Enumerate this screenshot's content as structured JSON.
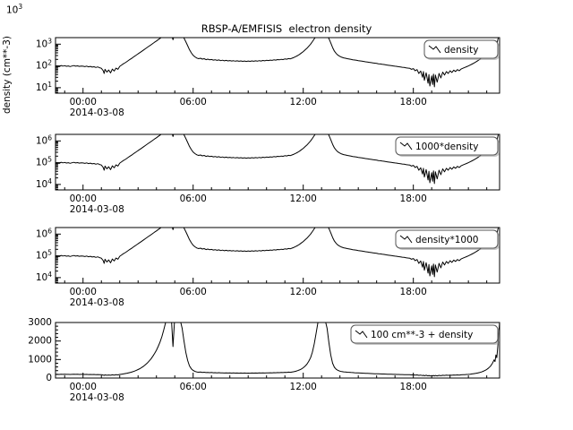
{
  "window": {
    "background": "#ffffff"
  },
  "stray_label": {
    "base": "10",
    "exp": "3"
  },
  "chart_data": {
    "type": "line",
    "title": "RBSP-A/EMFISIS  electron density",
    "series_name": "density",
    "date_label": "2014-03-08",
    "line_color": "#000000",
    "grid": false,
    "legend_position": "top-right",
    "x_range_hours": [
      -1.5,
      22.7
    ],
    "x_major_ticks_hours": [
      0,
      6,
      12,
      18
    ],
    "x_tick_labels": [
      "00:00",
      "06:00",
      "12:00",
      "18:00"
    ],
    "panels": [
      {
        "legend": "density",
        "ylabel": "density (cm**-3)",
        "scale": "log",
        "y_range": [
          5.6,
          2000
        ],
        "y_major_ticks": [
          {
            "value": 10,
            "base": "10",
            "exp": "1"
          },
          {
            "value": 100,
            "base": "10",
            "exp": "2"
          },
          {
            "value": 1000,
            "base": "10",
            "exp": "3"
          }
        ],
        "transform": {
          "scale": 1,
          "offset": 0
        }
      },
      {
        "legend": "1000*density",
        "ylabel": "",
        "scale": "log",
        "y_range": [
          5600,
          2000000
        ],
        "y_major_ticks": [
          {
            "value": 10000,
            "base": "10",
            "exp": "4"
          },
          {
            "value": 100000,
            "base": "10",
            "exp": "5"
          },
          {
            "value": 1000000,
            "base": "10",
            "exp": "6"
          }
        ],
        "transform": {
          "scale": 1000,
          "offset": 0
        }
      },
      {
        "legend": "density*1000",
        "ylabel": "",
        "scale": "log",
        "y_range": [
          5600,
          2000000
        ],
        "y_major_ticks": [
          {
            "value": 10000,
            "base": "10",
            "exp": "4"
          },
          {
            "value": 100000,
            "base": "10",
            "exp": "5"
          },
          {
            "value": 1000000,
            "base": "10",
            "exp": "6"
          }
        ],
        "transform": {
          "scale": 1000,
          "offset": 0
        }
      },
      {
        "legend": "100 cm**-3 + density",
        "ylabel": "",
        "scale": "linear",
        "y_range": [
          0,
          3000
        ],
        "y_minor_step": 200,
        "y_major_ticks": [
          {
            "value": 0,
            "label": "0"
          },
          {
            "value": 1000,
            "label": "1000"
          },
          {
            "value": 2000,
            "label": "2000"
          },
          {
            "value": 3000,
            "label": "3000"
          }
        ],
        "transform": {
          "scale": 1,
          "offset": 100
        }
      }
    ],
    "points_hours_density": [
      [
        -1.5,
        95
      ],
      [
        -1.4,
        100
      ],
      [
        -1.3,
        92
      ],
      [
        -1.2,
        105
      ],
      [
        -1.1,
        98
      ],
      [
        -1.0,
        103
      ],
      [
        -0.9,
        96
      ],
      [
        -0.8,
        100
      ],
      [
        -0.7,
        94
      ],
      [
        -0.6,
        99
      ],
      [
        -0.5,
        104
      ],
      [
        -0.4,
        97
      ],
      [
        -0.3,
        101
      ],
      [
        -0.2,
        95
      ],
      [
        -0.1,
        99
      ],
      [
        0.0,
        97
      ],
      [
        0.1,
        93
      ],
      [
        0.2,
        98
      ],
      [
        0.3,
        91
      ],
      [
        0.4,
        95
      ],
      [
        0.5,
        88
      ],
      [
        0.6,
        92
      ],
      [
        0.7,
        85
      ],
      [
        0.8,
        90
      ],
      [
        0.9,
        83
      ],
      [
        1.0,
        78
      ],
      [
        1.1,
        60
      ],
      [
        1.15,
        45
      ],
      [
        1.2,
        70
      ],
      [
        1.3,
        52
      ],
      [
        1.4,
        65
      ],
      [
        1.5,
        48
      ],
      [
        1.6,
        72
      ],
      [
        1.7,
        58
      ],
      [
        1.8,
        80
      ],
      [
        1.9,
        70
      ],
      [
        2.0,
        95
      ],
      [
        2.1,
        110
      ],
      [
        2.2,
        125
      ],
      [
        2.3,
        140
      ],
      [
        2.4,
        160
      ],
      [
        2.5,
        185
      ],
      [
        2.6,
        210
      ],
      [
        2.7,
        240
      ],
      [
        2.8,
        275
      ],
      [
        2.9,
        315
      ],
      [
        3.0,
        360
      ],
      [
        3.1,
        410
      ],
      [
        3.2,
        470
      ],
      [
        3.3,
        540
      ],
      [
        3.4,
        620
      ],
      [
        3.5,
        710
      ],
      [
        3.6,
        815
      ],
      [
        3.7,
        930
      ],
      [
        3.8,
        1070
      ],
      [
        3.9,
        1230
      ],
      [
        4.0,
        1400
      ],
      [
        4.1,
        1620
      ],
      [
        4.2,
        1850
      ],
      [
        4.3,
        2150
      ],
      [
        4.4,
        2500
      ],
      [
        4.5,
        2900
      ],
      [
        4.6,
        3300
      ],
      [
        4.7,
        3600
      ],
      [
        4.8,
        3400
      ],
      [
        4.9,
        1600
      ],
      [
        5.0,
        3200
      ],
      [
        5.1,
        3500
      ],
      [
        5.2,
        3300
      ],
      [
        5.3,
        3000
      ],
      [
        5.4,
        2600
      ],
      [
        5.5,
        1900
      ],
      [
        5.6,
        1300
      ],
      [
        5.7,
        850
      ],
      [
        5.8,
        560
      ],
      [
        5.9,
        400
      ],
      [
        6.0,
        310
      ],
      [
        6.1,
        260
      ],
      [
        6.2,
        230
      ],
      [
        6.3,
        215
      ],
      [
        6.4,
        225
      ],
      [
        6.5,
        205
      ],
      [
        6.6,
        215
      ],
      [
        6.7,
        195
      ],
      [
        6.8,
        205
      ],
      [
        6.9,
        190
      ],
      [
        7.0,
        198
      ],
      [
        7.1,
        185
      ],
      [
        7.2,
        192
      ],
      [
        7.3,
        180
      ],
      [
        7.4,
        188
      ],
      [
        7.5,
        175
      ],
      [
        7.6,
        183
      ],
      [
        7.7,
        172
      ],
      [
        7.8,
        180
      ],
      [
        7.9,
        170
      ],
      [
        8.0,
        176
      ],
      [
        8.1,
        168
      ],
      [
        8.2,
        174
      ],
      [
        8.3,
        165
      ],
      [
        8.4,
        172
      ],
      [
        8.5,
        163
      ],
      [
        8.6,
        170
      ],
      [
        8.7,
        162
      ],
      [
        8.8,
        169
      ],
      [
        8.9,
        161
      ],
      [
        9.0,
        168
      ],
      [
        9.1,
        162
      ],
      [
        9.2,
        170
      ],
      [
        9.3,
        164
      ],
      [
        9.4,
        172
      ],
      [
        9.5,
        166
      ],
      [
        9.6,
        175
      ],
      [
        9.7,
        169
      ],
      [
        9.8,
        178
      ],
      [
        9.9,
        172
      ],
      [
        10.0,
        182
      ],
      [
        10.1,
        176
      ],
      [
        10.2,
        186
      ],
      [
        10.3,
        180
      ],
      [
        10.4,
        191
      ],
      [
        10.5,
        185
      ],
      [
        10.6,
        196
      ],
      [
        10.7,
        190
      ],
      [
        10.8,
        202
      ],
      [
        10.9,
        196
      ],
      [
        11.0,
        209
      ],
      [
        11.1,
        203
      ],
      [
        11.2,
        217
      ],
      [
        11.3,
        212
      ],
      [
        11.4,
        228
      ],
      [
        11.5,
        245
      ],
      [
        11.6,
        270
      ],
      [
        11.7,
        300
      ],
      [
        11.8,
        340
      ],
      [
        11.9,
        390
      ],
      [
        12.0,
        455
      ],
      [
        12.1,
        540
      ],
      [
        12.2,
        650
      ],
      [
        12.3,
        800
      ],
      [
        12.4,
        1000
      ],
      [
        12.5,
        1300
      ],
      [
        12.6,
        1750
      ],
      [
        12.7,
        2300
      ],
      [
        12.8,
        2900
      ],
      [
        12.9,
        3300
      ],
      [
        13.0,
        3500
      ],
      [
        13.1,
        3300
      ],
      [
        13.2,
        3000
      ],
      [
        13.3,
        2600
      ],
      [
        13.4,
        1800
      ],
      [
        13.5,
        1150
      ],
      [
        13.6,
        700
      ],
      [
        13.7,
        480
      ],
      [
        13.8,
        370
      ],
      [
        13.9,
        310
      ],
      [
        14.0,
        275
      ],
      [
        14.1,
        250
      ],
      [
        14.2,
        235
      ],
      [
        14.3,
        225
      ],
      [
        14.4,
        215
      ],
      [
        14.5,
        208
      ],
      [
        14.6,
        200
      ],
      [
        14.7,
        193
      ],
      [
        14.8,
        187
      ],
      [
        14.9,
        181
      ],
      [
        15.0,
        175
      ],
      [
        15.1,
        170
      ],
      [
        15.2,
        165
      ],
      [
        15.3,
        160
      ],
      [
        15.4,
        155
      ],
      [
        15.5,
        150
      ],
      [
        15.6,
        146
      ],
      [
        15.7,
        142
      ],
      [
        15.8,
        138
      ],
      [
        15.9,
        134
      ],
      [
        16.0,
        130
      ],
      [
        16.1,
        126
      ],
      [
        16.2,
        123
      ],
      [
        16.3,
        119
      ],
      [
        16.4,
        116
      ],
      [
        16.5,
        112
      ],
      [
        16.6,
        109
      ],
      [
        16.7,
        106
      ],
      [
        16.8,
        103
      ],
      [
        16.9,
        100
      ],
      [
        17.0,
        97
      ],
      [
        17.1,
        95
      ],
      [
        17.2,
        92
      ],
      [
        17.3,
        90
      ],
      [
        17.4,
        87
      ],
      [
        17.5,
        85
      ],
      [
        17.6,
        82
      ],
      [
        17.7,
        80
      ],
      [
        17.8,
        78
      ],
      [
        17.9,
        70
      ],
      [
        18.0,
        75
      ],
      [
        18.1,
        60
      ],
      [
        18.2,
        68
      ],
      [
        18.3,
        45
      ],
      [
        18.4,
        58
      ],
      [
        18.5,
        30
      ],
      [
        18.55,
        55
      ],
      [
        18.6,
        22
      ],
      [
        18.7,
        48
      ],
      [
        18.8,
        16
      ],
      [
        18.85,
        40
      ],
      [
        18.9,
        12
      ],
      [
        19.0,
        35
      ],
      [
        19.05,
        14
      ],
      [
        19.1,
        42
      ],
      [
        19.15,
        11
      ],
      [
        19.2,
        38
      ],
      [
        19.3,
        18
      ],
      [
        19.4,
        45
      ],
      [
        19.5,
        28
      ],
      [
        19.6,
        52
      ],
      [
        19.7,
        38
      ],
      [
        19.8,
        55
      ],
      [
        19.9,
        45
      ],
      [
        20.0,
        60
      ],
      [
        20.1,
        50
      ],
      [
        20.2,
        64
      ],
      [
        20.3,
        55
      ],
      [
        20.4,
        68
      ],
      [
        20.5,
        60
      ],
      [
        20.6,
        72
      ],
      [
        20.7,
        78
      ],
      [
        20.8,
        85
      ],
      [
        20.9,
        92
      ],
      [
        21.0,
        100
      ],
      [
        21.1,
        110
      ],
      [
        21.2,
        122
      ],
      [
        21.3,
        136
      ],
      [
        21.4,
        152
      ],
      [
        21.5,
        172
      ],
      [
        21.6,
        196
      ],
      [
        21.7,
        226
      ],
      [
        21.8,
        262
      ],
      [
        21.9,
        308
      ],
      [
        22.0,
        365
      ],
      [
        22.1,
        440
      ],
      [
        22.2,
        540
      ],
      [
        22.3,
        680
      ],
      [
        22.4,
        880
      ],
      [
        22.45,
        790
      ],
      [
        22.5,
        1150
      ],
      [
        22.55,
        1000
      ],
      [
        22.6,
        1600
      ],
      [
        22.65,
        2300
      ],
      [
        22.7,
        2900
      ]
    ]
  }
}
